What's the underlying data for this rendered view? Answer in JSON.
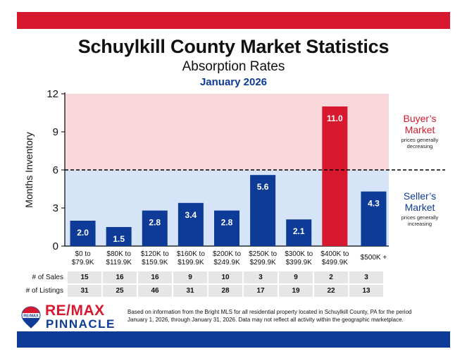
{
  "header": {
    "title": "Schuylkill County Market Statistics",
    "subtitle": "Absorption Rates",
    "date": "January 2026"
  },
  "colors": {
    "red": "#d7192f",
    "blue": "#0d3b97",
    "buyer_zone": "#f9d8dc",
    "seller_zone": "#d6e4f8"
  },
  "zones": {
    "buyer": {
      "title_line1": "Buyer’s",
      "title_line2": "Market",
      "desc_line1": "prices generally",
      "desc_line2": "decreasing"
    },
    "seller": {
      "title_line1": "Seller’s",
      "title_line2": "Market",
      "desc_line1": "prices generally",
      "desc_line2": "increasing"
    }
  },
  "chart_data": {
    "type": "bar",
    "title": "Absorption Rates",
    "xlabel": "",
    "ylabel": "Months Inventory",
    "ylim": [
      0,
      12
    ],
    "yticks": [
      0,
      3,
      6,
      9,
      12
    ],
    "threshold": 6,
    "categories": [
      [
        "$0 to",
        "$79.9K"
      ],
      [
        "$80K to",
        "$119.9K"
      ],
      [
        "$120K to",
        "$159.9K"
      ],
      [
        "$160K to",
        "$199.9K"
      ],
      [
        "$200K to",
        "$249.9K"
      ],
      [
        "$250K to",
        "$299.9K"
      ],
      [
        "$300K to",
        "$399.9K"
      ],
      [
        "$400K to",
        "$499.9K"
      ],
      [
        "$500K +"
      ]
    ],
    "values": [
      2.0,
      1.5,
      2.8,
      3.4,
      2.8,
      5.6,
      2.1,
      11.0,
      4.3
    ],
    "labels": [
      "2.0",
      "1.5",
      "2.8",
      "3.4",
      "2.8",
      "5.6",
      "2.1",
      "11.0",
      "4.3"
    ]
  },
  "table": {
    "rows": [
      {
        "label": "# of Sales",
        "values": [
          "15",
          "16",
          "16",
          "9",
          "10",
          "3",
          "9",
          "2",
          "3"
        ]
      },
      {
        "label": "# of Listings",
        "values": [
          "31",
          "25",
          "46",
          "31",
          "28",
          "17",
          "19",
          "22",
          "13"
        ]
      }
    ]
  },
  "logo": {
    "balloon_text": "RE/MAX",
    "brand_line1": "RE/MAX",
    "brand_line2": "PINNACLE"
  },
  "footnote": {
    "line1": "Based on information from the Bright MLS for all residential property located in Schuylkill County, PA for the period",
    "line2": "January 1, 2026, through January 31, 2026.  Data may not reflect all activity within the geographic marketplace."
  }
}
